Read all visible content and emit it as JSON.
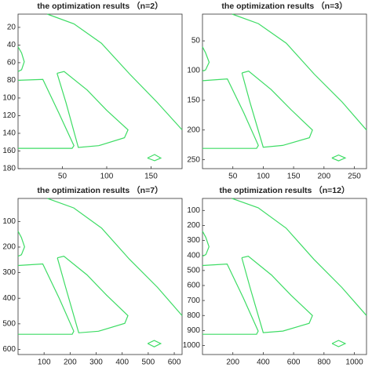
{
  "chart_data": [
    {
      "type": "line",
      "title": "the optimization results （n=2）",
      "xlim": [
        0,
        185
      ],
      "ylim": [
        5,
        180
      ],
      "y_reversed": true,
      "xticks": [
        50,
        100,
        150
      ],
      "yticks": [
        20,
        40,
        60,
        80,
        100,
        120,
        140,
        160,
        180
      ],
      "series": [
        {
          "color": "#3ddc64",
          "x": [
            33,
            63,
            94,
            126,
            157,
            185
          ],
          "values": [
            5,
            16,
            38,
            73,
            105,
            136
          ]
        },
        {
          "color": "#3ddc64",
          "x": [
            0,
            4,
            7,
            4,
            0
          ],
          "values": [
            42,
            49,
            59,
            68,
            70
          ]
        },
        {
          "color": "#3ddc64",
          "x": [
            0,
            28,
            46,
            63,
            61,
            0
          ],
          "values": [
            80,
            79,
            117,
            154,
            157,
            157
          ]
        },
        {
          "color": "#3ddc64",
          "x": [
            44,
            52,
            78,
            100,
            124,
            120,
            91,
            68,
            54,
            44
          ],
          "values": [
            72,
            70,
            91,
            114,
            136,
            145,
            154,
            156,
            105,
            72
          ]
        },
        {
          "color": "#3ddc64",
          "x": [
            146,
            154,
            161,
            154,
            146
          ],
          "values": [
            168,
            164,
            168,
            171,
            168
          ]
        }
      ]
    },
    {
      "type": "line",
      "title": "the optimization results （n=3）",
      "xlim": [
        0,
        270
      ],
      "ylim": [
        5,
        265
      ],
      "y_reversed": true,
      "xticks": [
        50,
        100,
        150,
        200,
        250
      ],
      "yticks": [
        50,
        100,
        150,
        200,
        250
      ],
      "series": [
        {
          "color": "#3ddc64",
          "x": [
            49,
            92,
            138,
            184,
            230,
            270
          ],
          "values": [
            5,
            21,
            54,
            106,
            153,
            200
          ]
        },
        {
          "color": "#3ddc64",
          "x": [
            0,
            5,
            11,
            5,
            0
          ],
          "values": [
            60,
            70,
            86,
            99,
            101
          ]
        },
        {
          "color": "#3ddc64",
          "x": [
            0,
            41,
            68,
            92,
            89,
            0
          ],
          "values": [
            117,
            114,
            171,
            226,
            231,
            231
          ]
        },
        {
          "color": "#3ddc64",
          "x": [
            65,
            76,
            113,
            146,
            181,
            176,
            132,
            100,
            78,
            65
          ],
          "values": [
            104,
            101,
            132,
            166,
            200,
            213,
            226,
            229,
            153,
            104
          ]
        },
        {
          "color": "#3ddc64",
          "x": [
            213,
            224,
            235,
            224,
            213
          ],
          "values": [
            247,
            242,
            247,
            252,
            247
          ]
        }
      ]
    },
    {
      "type": "line",
      "title": "the optimization results （n=7）",
      "xlim": [
        0,
        630
      ],
      "ylim": [
        10,
        620
      ],
      "y_reversed": true,
      "xticks": [
        100,
        200,
        300,
        400,
        500,
        600
      ],
      "yticks": [
        100,
        200,
        300,
        400,
        500,
        600
      ],
      "series": [
        {
          "color": "#3ddc64",
          "x": [
            113,
            214,
            321,
            428,
            536,
            630
          ],
          "values": [
            10,
            47,
            126,
            248,
            358,
            468
          ]
        },
        {
          "color": "#3ddc64",
          "x": [
            0,
            13,
            25,
            13,
            0
          ],
          "values": [
            138,
            163,
            199,
            230,
            236
          ]
        },
        {
          "color": "#3ddc64",
          "x": [
            0,
            95,
            158,
            214,
            208,
            0
          ],
          "values": [
            272,
            266,
            400,
            529,
            541,
            541
          ]
        },
        {
          "color": "#3ddc64",
          "x": [
            151,
            176,
            265,
            340,
            422,
            410,
            309,
            233,
            183,
            151
          ],
          "values": [
            242,
            236,
            309,
            388,
            468,
            498,
            529,
            535,
            358,
            242
          ]
        },
        {
          "color": "#3ddc64",
          "x": [
            498,
            523,
            548,
            523,
            498
          ],
          "values": [
            577,
            565,
            577,
            590,
            577
          ]
        }
      ]
    },
    {
      "type": "line",
      "title": "the optimization results （n=12）",
      "xlim": [
        0,
        1080
      ],
      "ylim": [
        20,
        1060
      ],
      "y_reversed": true,
      "xticks": [
        200,
        400,
        600,
        800,
        1000
      ],
      "yticks": [
        100,
        200,
        300,
        400,
        500,
        600,
        700,
        800,
        900,
        1000
      ],
      "series": [
        {
          "color": "#3ddc64",
          "x": [
            194,
            367,
            551,
            734,
            918,
            1080
          ],
          "values": [
            20,
            82,
            218,
            426,
            613,
            800
          ]
        },
        {
          "color": "#3ddc64",
          "x": [
            0,
            22,
            43,
            22,
            0
          ],
          "values": [
            238,
            280,
            342,
            394,
            405
          ]
        },
        {
          "color": "#3ddc64",
          "x": [
            0,
            162,
            270,
            367,
            356,
            0
          ],
          "values": [
            467,
            457,
            686,
            904,
            925,
            925
          ]
        },
        {
          "color": "#3ddc64",
          "x": [
            259,
            302,
            454,
            583,
            724,
            702,
            529,
            400,
            313,
            259
          ],
          "values": [
            415,
            405,
            530,
            665,
            800,
            852,
            904,
            914,
            613,
            415
          ]
        },
        {
          "color": "#3ddc64",
          "x": [
            853,
            896,
            940,
            896,
            853
          ],
          "values": [
            987,
            966,
            987,
            1008,
            987
          ]
        }
      ]
    }
  ]
}
